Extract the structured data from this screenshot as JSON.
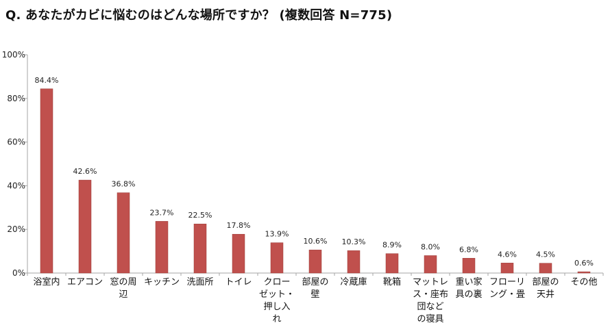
{
  "title": "Q. あなたがカビに悩むのはどんな場所ですか？ (複数回答 N=775)",
  "colors": {
    "bar": "#c0504d",
    "bar_edge": "#9b3a37",
    "axis": "#a6a6a6",
    "grid": "#d9d9d9"
  },
  "chart_data": {
    "type": "bar",
    "title": "Q. あなたがカビに悩むのはどんな場所ですか？ (複数回答 N=775)",
    "xlabel": "",
    "ylabel": "",
    "ylim": [
      0,
      100
    ],
    "yticks": [
      0,
      20,
      40,
      60,
      80,
      100
    ],
    "ytick_labels": [
      "0%",
      "20%",
      "40%",
      "60%",
      "80%",
      "100%"
    ],
    "grid": false,
    "legend": "none",
    "categories": [
      "浴室内",
      "エアコン",
      "窓の周辺",
      "キッチン",
      "洗面所",
      "トイレ",
      "クローゼット・押し入れ",
      "部屋の壁",
      "冷蔵庫",
      "靴箱",
      "マットレス・座布団などの寝具",
      "重い家具の裏",
      "フローリング・畳",
      "部屋の天井",
      "その他"
    ],
    "category_lines": [
      [
        "浴室内"
      ],
      [
        "エアコン"
      ],
      [
        "窓の周",
        "辺"
      ],
      [
        "キッチン"
      ],
      [
        "洗面所"
      ],
      [
        "トイレ"
      ],
      [
        "クロー",
        "ゼット・",
        "押し入",
        "れ"
      ],
      [
        "部屋の",
        "壁"
      ],
      [
        "冷蔵庫"
      ],
      [
        "靴箱"
      ],
      [
        "マットレ",
        "ス・座布",
        "団など",
        "の寝具"
      ],
      [
        "重い家",
        "具の裏"
      ],
      [
        "フローリ",
        "ング・畳"
      ],
      [
        "部屋の",
        "天井"
      ],
      [
        "その他"
      ]
    ],
    "values": [
      84.4,
      42.6,
      36.8,
      23.7,
      22.5,
      17.8,
      13.9,
      10.6,
      10.3,
      8.9,
      8.0,
      6.8,
      4.6,
      4.5,
      0.6
    ],
    "value_labels": [
      "84.4%",
      "42.6%",
      "36.8%",
      "23.7%",
      "22.5%",
      "17.8%",
      "13.9%",
      "10.6%",
      "10.3%",
      "8.9%",
      "8.0%",
      "6.8%",
      "4.6%",
      "4.5%",
      "0.6%"
    ]
  }
}
